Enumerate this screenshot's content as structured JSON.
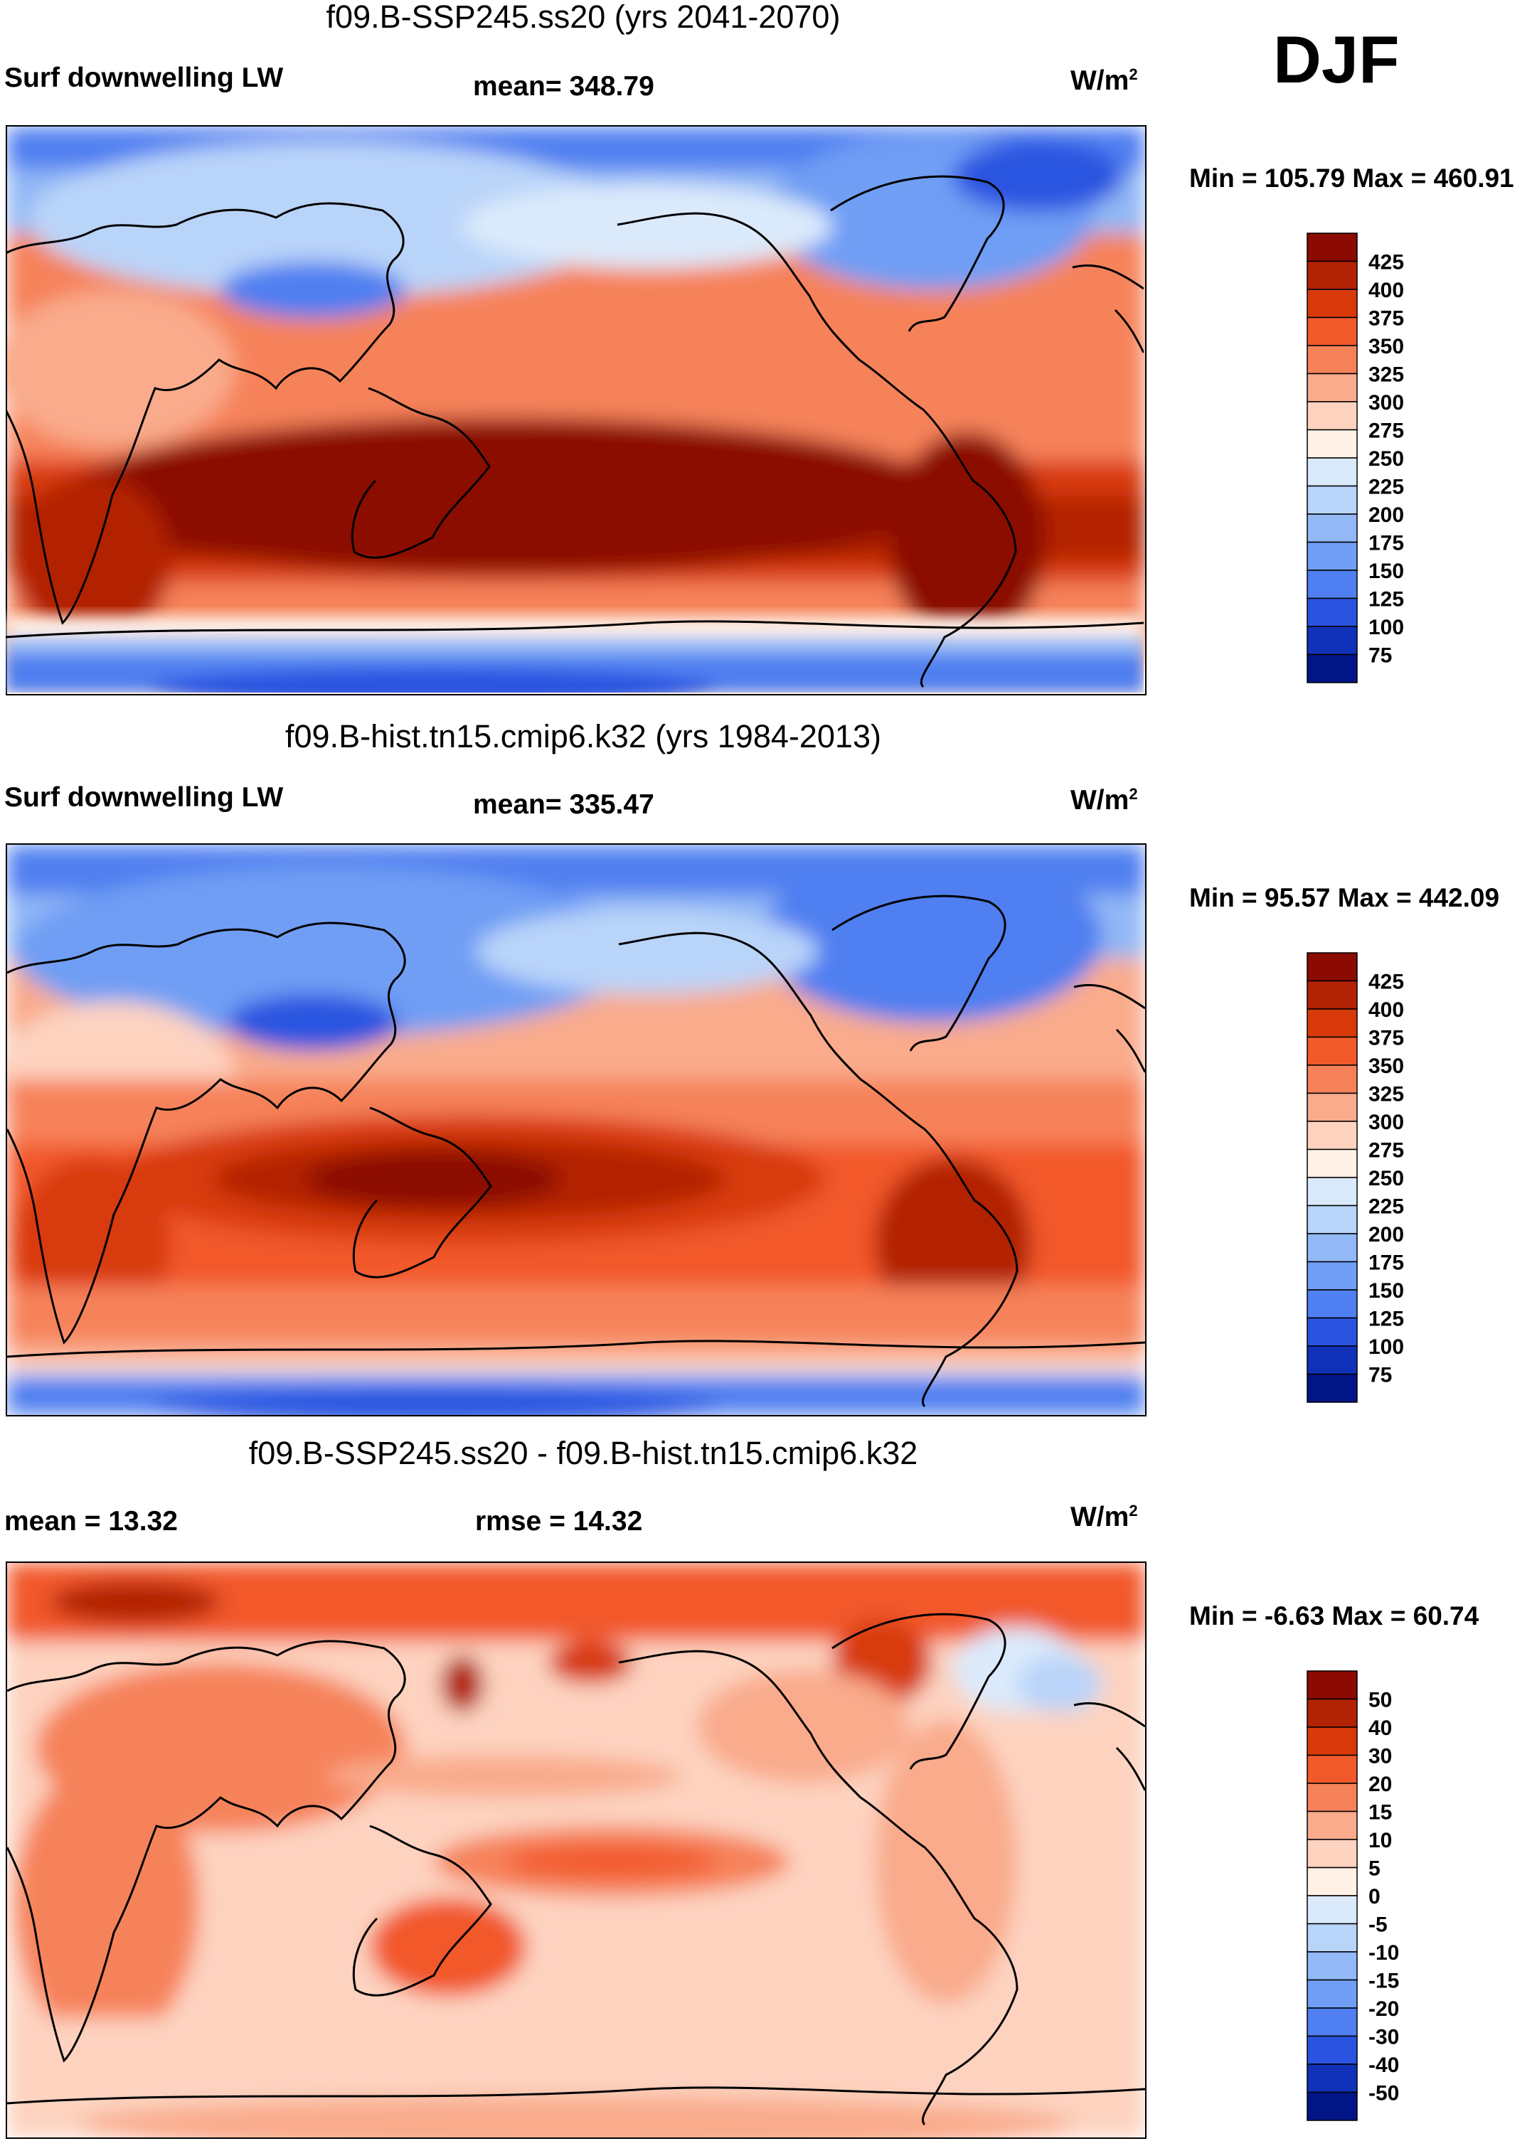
{
  "season": "DJF",
  "panels": [
    {
      "title": "f09.B-SSP245.ss20 (yrs 2041-2070)",
      "left_label": "Surf downwelling LW",
      "center_label": "mean= 348.79",
      "units_label": "W/m",
      "units_sup": "2",
      "minmax": "Min = 105.79 Max = 460.91",
      "colorbar": {
        "labels": [
          "425",
          "400",
          "375",
          "350",
          "325",
          "300",
          "275",
          "250",
          "225",
          "200",
          "175",
          "150",
          "125",
          "100",
          "75"
        ],
        "colors": [
          "#8b0a02",
          "#b22204",
          "#d83a0c",
          "#f2592a",
          "#f6825a",
          "#f9ab8c",
          "#fdd3c0",
          "#fff1e6",
          "#dbeafb",
          "#b9d4f9",
          "#92b8f5",
          "#6f9ef4",
          "#4f7ff0",
          "#2a54e0",
          "#1132b8",
          "#011587"
        ]
      }
    },
    {
      "title": "f09.B-hist.tn15.cmip6.k32 (yrs 1984-2013)",
      "left_label": "Surf downwelling LW",
      "center_label": "mean= 335.47",
      "units_label": "W/m",
      "units_sup": "2",
      "minmax": "Min =  95.57 Max = 442.09",
      "colorbar": {
        "labels": [
          "425",
          "400",
          "375",
          "350",
          "325",
          "300",
          "275",
          "250",
          "225",
          "200",
          "175",
          "150",
          "125",
          "100",
          "75"
        ],
        "colors": [
          "#8b0a02",
          "#b22204",
          "#d83a0c",
          "#f2592a",
          "#f6825a",
          "#f9ab8c",
          "#fdd3c0",
          "#fff1e6",
          "#dbeafb",
          "#b9d4f9",
          "#92b8f5",
          "#6f9ef4",
          "#4f7ff0",
          "#2a54e0",
          "#1132b8",
          "#011587"
        ]
      }
    },
    {
      "title": "f09.B-SSP245.ss20 - f09.B-hist.tn15.cmip6.k32",
      "left_label": "mean =  13.32",
      "center_label": "rmse =  14.32",
      "units_label": "W/m",
      "units_sup": "2",
      "minmax": "Min =  -6.63 Max =  60.74",
      "colorbar": {
        "labels": [
          "50",
          "40",
          "30",
          "20",
          "15",
          "10",
          "5",
          "0",
          "-5",
          "-10",
          "-15",
          "-20",
          "-30",
          "-40",
          "-50"
        ],
        "colors": [
          "#8b0a02",
          "#b22204",
          "#d83a0c",
          "#f2592a",
          "#f6825a",
          "#f9ab8c",
          "#fdd3c0",
          "#fff1e6",
          "#dbeafb",
          "#b9d4f9",
          "#92b8f5",
          "#6f9ef4",
          "#4f7ff0",
          "#2a54e0",
          "#1132b8",
          "#011587"
        ]
      }
    }
  ]
}
